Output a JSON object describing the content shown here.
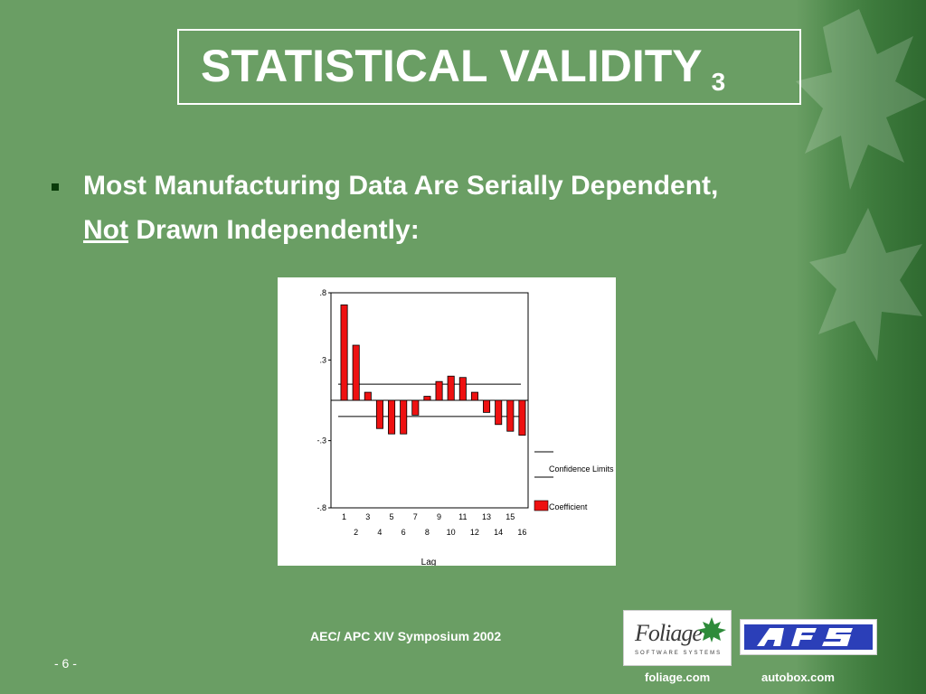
{
  "slide": {
    "title": "STATISTICAL VALIDITY",
    "title_subscript": "3",
    "bullet_line1": "Most Manufacturing Data Are Serially Dependent,",
    "bullet_line2_underlined": "Not",
    "bullet_line2_rest": " Drawn Independently:",
    "footer": "AEC/ APC XIV Symposium 2002",
    "page_number": "- 6 -",
    "url_left": "foliage.com",
    "url_right": "autobox.com",
    "logo_foliage_word": "Foliage",
    "logo_foliage_sub": "SOFTWARE SYSTEMS"
  },
  "colors": {
    "background": "#6a9e64",
    "bar_fill": "#ee1111",
    "text": "#ffffff"
  },
  "chart_data": {
    "type": "bar",
    "x": [
      1,
      2,
      3,
      4,
      5,
      6,
      7,
      8,
      9,
      10,
      11,
      12,
      13,
      14,
      15,
      16
    ],
    "values": [
      0.71,
      0.41,
      0.06,
      -0.21,
      -0.25,
      -0.25,
      -0.11,
      0.03,
      0.14,
      0.18,
      0.17,
      0.06,
      -0.09,
      -0.18,
      -0.23,
      -0.26
    ],
    "confidence_limits": [
      0.12,
      -0.12
    ],
    "ylim": [
      -0.8,
      0.8
    ],
    "yticks": [
      ".8",
      ".3",
      "-.3",
      "-.8"
    ],
    "ytick_values": [
      0.8,
      0.3,
      -0.3,
      -0.8
    ],
    "xticks_top": [
      "1",
      "3",
      "5",
      "7",
      "9",
      "11",
      "13",
      "15"
    ],
    "xticks_bottom": [
      "2",
      "4",
      "6",
      "8",
      "10",
      "12",
      "14",
      "16"
    ],
    "xlabel": "Lag",
    "legend": [
      "Confidence Limits",
      "Coefficient"
    ],
    "grid": false
  }
}
